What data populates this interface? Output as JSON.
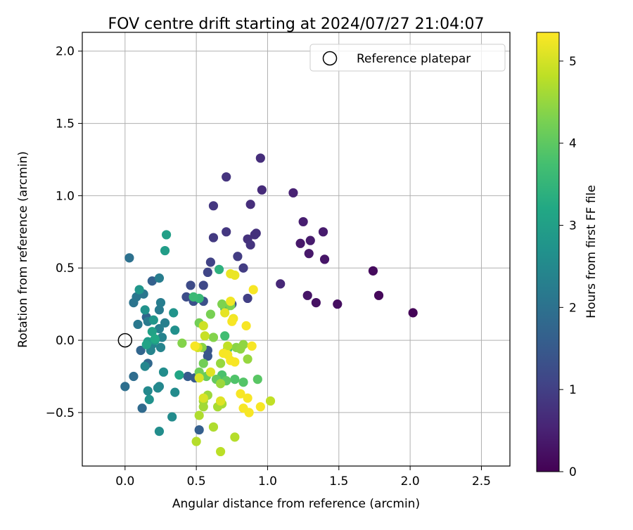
{
  "chart_data": {
    "type": "scatter",
    "title": "FOV centre drift starting at 2024/07/27 21:04:07",
    "xlabel": "Angular distance from reference (arcmin)",
    "ylabel": "Rotation from reference (arcmin)",
    "xlim": [
      -0.3,
      2.7
    ],
    "ylim": [
      -0.87,
      2.13
    ],
    "xticks": [
      0.0,
      0.5,
      1.0,
      1.5,
      2.0,
      2.5
    ],
    "yticks": [
      -0.5,
      0.0,
      0.5,
      1.0,
      1.5,
      2.0
    ],
    "xtick_labels": [
      "0.0",
      "0.5",
      "1.0",
      "1.5",
      "2.0",
      "2.5"
    ],
    "ytick_labels": [
      "−0.5",
      "0.0",
      "0.5",
      "1.0",
      "1.5",
      "2.0"
    ],
    "grid": true,
    "legend": {
      "position": "top-right",
      "label": "Reference platepar"
    },
    "reference_point": {
      "x": 0.0,
      "y": 0.0
    },
    "colorbar": {
      "label": "Hours from first FF file",
      "range": [
        0,
        5.35
      ],
      "ticks": [
        0,
        1,
        2,
        3,
        4,
        5
      ],
      "tick_labels": [
        "0",
        "1",
        "2",
        "3",
        "4",
        "5"
      ],
      "colormap": "viridis"
    },
    "points": [
      {
        "x": 2.02,
        "y": 0.19,
        "c": 0.05
      },
      {
        "x": 1.78,
        "y": 0.31,
        "c": 0.1
      },
      {
        "x": 1.74,
        "y": 0.48,
        "c": 0.15
      },
      {
        "x": 1.49,
        "y": 0.25,
        "c": 0.2
      },
      {
        "x": 1.34,
        "y": 0.26,
        "c": 0.25
      },
      {
        "x": 1.28,
        "y": 0.31,
        "c": 0.3
      },
      {
        "x": 1.4,
        "y": 0.56,
        "c": 0.3
      },
      {
        "x": 1.29,
        "y": 0.6,
        "c": 0.35
      },
      {
        "x": 1.23,
        "y": 0.67,
        "c": 0.35
      },
      {
        "x": 1.3,
        "y": 0.69,
        "c": 0.4
      },
      {
        "x": 1.39,
        "y": 0.75,
        "c": 0.4
      },
      {
        "x": 1.25,
        "y": 0.82,
        "c": 0.45
      },
      {
        "x": 1.18,
        "y": 1.02,
        "c": 0.5
      },
      {
        "x": 1.09,
        "y": 0.39,
        "c": 0.6
      },
      {
        "x": 0.96,
        "y": 1.04,
        "c": 0.65
      },
      {
        "x": 0.95,
        "y": 1.26,
        "c": 0.7
      },
      {
        "x": 0.88,
        "y": 0.94,
        "c": 0.7
      },
      {
        "x": 0.92,
        "y": 0.74,
        "c": 0.75
      },
      {
        "x": 0.91,
        "y": 0.73,
        "c": 0.75
      },
      {
        "x": 0.86,
        "y": 0.7,
        "c": 0.75
      },
      {
        "x": 0.88,
        "y": 0.66,
        "c": 0.8
      },
      {
        "x": 0.71,
        "y": 1.13,
        "c": 0.8
      },
      {
        "x": 0.62,
        "y": 0.93,
        "c": 0.85
      },
      {
        "x": 0.71,
        "y": 0.75,
        "c": 0.85
      },
      {
        "x": 0.62,
        "y": 0.71,
        "c": 0.9
      },
      {
        "x": 0.79,
        "y": 0.58,
        "c": 0.95
      },
      {
        "x": 0.83,
        "y": 0.5,
        "c": 0.95
      },
      {
        "x": 0.86,
        "y": 0.29,
        "c": 1.0
      },
      {
        "x": 0.6,
        "y": 0.54,
        "c": 1.05
      },
      {
        "x": 0.58,
        "y": 0.47,
        "c": 1.1
      },
      {
        "x": 0.55,
        "y": 0.38,
        "c": 1.15
      },
      {
        "x": 0.46,
        "y": 0.38,
        "c": 1.2
      },
      {
        "x": 0.43,
        "y": 0.3,
        "c": 1.25
      },
      {
        "x": 0.48,
        "y": 0.27,
        "c": 1.3
      },
      {
        "x": 0.55,
        "y": 0.27,
        "c": 1.3
      },
      {
        "x": 0.75,
        "y": 0.25,
        "c": 1.35
      },
      {
        "x": 0.58,
        "y": -0.07,
        "c": 1.4
      },
      {
        "x": 0.58,
        "y": -0.11,
        "c": 1.45
      },
      {
        "x": 0.49,
        "y": -0.26,
        "c": 1.5
      },
      {
        "x": 0.44,
        "y": -0.25,
        "c": 1.55
      },
      {
        "x": 0.52,
        "y": -0.62,
        "c": 1.6
      },
      {
        "x": 0.19,
        "y": 0.41,
        "c": 1.65
      },
      {
        "x": 0.15,
        "y": 0.16,
        "c": 1.7
      },
      {
        "x": 0.11,
        "y": -0.07,
        "c": 1.75
      },
      {
        "x": 0.16,
        "y": -0.16,
        "c": 1.8
      },
      {
        "x": 0.12,
        "y": -0.47,
        "c": 1.85
      },
      {
        "x": 0.06,
        "y": -0.25,
        "c": 1.9
      },
      {
        "x": 0.0,
        "y": -0.32,
        "c": 1.95
      },
      {
        "x": 0.03,
        "y": 0.57,
        "c": 2.0
      },
      {
        "x": 0.06,
        "y": 0.26,
        "c": 2.05
      },
      {
        "x": 0.08,
        "y": 0.3,
        "c": 2.1
      },
      {
        "x": 0.13,
        "y": 0.32,
        "c": 2.1
      },
      {
        "x": 0.09,
        "y": 0.11,
        "c": 2.15
      },
      {
        "x": 0.16,
        "y": 0.13,
        "c": 2.2
      },
      {
        "x": 0.24,
        "y": 0.21,
        "c": 2.2
      },
      {
        "x": 0.25,
        "y": 0.26,
        "c": 2.25
      },
      {
        "x": 0.24,
        "y": 0.43,
        "c": 2.25
      },
      {
        "x": 0.28,
        "y": 0.12,
        "c": 2.3
      },
      {
        "x": 0.24,
        "y": 0.08,
        "c": 2.3
      },
      {
        "x": 0.26,
        "y": 0.02,
        "c": 2.35
      },
      {
        "x": 0.19,
        "y": -0.03,
        "c": 2.35
      },
      {
        "x": 0.25,
        "y": -0.05,
        "c": 2.4
      },
      {
        "x": 0.18,
        "y": -0.07,
        "c": 2.4
      },
      {
        "x": 0.14,
        "y": -0.18,
        "c": 2.45
      },
      {
        "x": 0.24,
        "y": -0.32,
        "c": 2.45
      },
      {
        "x": 0.23,
        "y": -0.33,
        "c": 2.5
      },
      {
        "x": 0.16,
        "y": -0.35,
        "c": 2.5
      },
      {
        "x": 0.35,
        "y": -0.36,
        "c": 2.55
      },
      {
        "x": 0.33,
        "y": -0.53,
        "c": 2.55
      },
      {
        "x": 0.24,
        "y": -0.63,
        "c": 2.6
      },
      {
        "x": 0.27,
        "y": -0.22,
        "c": 2.6
      },
      {
        "x": 0.35,
        "y": 0.07,
        "c": 2.65
      },
      {
        "x": 0.14,
        "y": 0.21,
        "c": 2.7
      },
      {
        "x": 0.17,
        "y": -0.41,
        "c": 2.7
      },
      {
        "x": 0.34,
        "y": 0.19,
        "c": 2.75
      },
      {
        "x": 0.2,
        "y": 0.14,
        "c": 2.8
      },
      {
        "x": 0.1,
        "y": 0.35,
        "c": 2.8
      },
      {
        "x": 0.21,
        "y": 0.0,
        "c": 2.85
      },
      {
        "x": 0.16,
        "y": -0.01,
        "c": 2.9
      },
      {
        "x": 0.28,
        "y": 0.62,
        "c": 2.95
      },
      {
        "x": 0.29,
        "y": 0.73,
        "c": 3.0
      },
      {
        "x": 0.19,
        "y": 0.06,
        "c": 3.05
      },
      {
        "x": 0.15,
        "y": -0.03,
        "c": 3.1
      },
      {
        "x": 0.38,
        "y": -0.24,
        "c": 3.15
      },
      {
        "x": 0.21,
        "y": 0.01,
        "c": 3.2
      },
      {
        "x": 0.66,
        "y": 0.49,
        "c": 3.4
      },
      {
        "x": 0.52,
        "y": 0.29,
        "c": 3.55
      },
      {
        "x": 0.48,
        "y": 0.3,
        "c": 3.6
      },
      {
        "x": 0.7,
        "y": 0.22,
        "c": 3.65
      },
      {
        "x": 0.7,
        "y": 0.03,
        "c": 3.7
      },
      {
        "x": 0.72,
        "y": -0.06,
        "c": 3.75
      },
      {
        "x": 0.68,
        "y": -0.24,
        "c": 3.8
      },
      {
        "x": 0.77,
        "y": -0.27,
        "c": 3.85
      },
      {
        "x": 0.83,
        "y": -0.29,
        "c": 3.9
      },
      {
        "x": 0.93,
        "y": -0.27,
        "c": 3.95
      },
      {
        "x": 0.71,
        "y": -0.28,
        "c": 4.0
      },
      {
        "x": 0.64,
        "y": -0.27,
        "c": 4.05
      },
      {
        "x": 0.57,
        "y": -0.25,
        "c": 4.1
      },
      {
        "x": 0.52,
        "y": -0.22,
        "c": 4.15
      },
      {
        "x": 0.55,
        "y": -0.16,
        "c": 4.2
      },
      {
        "x": 0.52,
        "y": 0.12,
        "c": 4.2
      },
      {
        "x": 0.6,
        "y": 0.18,
        "c": 4.25
      },
      {
        "x": 0.68,
        "y": 0.25,
        "c": 4.3
      },
      {
        "x": 0.74,
        "y": 0.24,
        "c": 4.3
      },
      {
        "x": 0.62,
        "y": 0.02,
        "c": 4.35
      },
      {
        "x": 0.4,
        "y": -0.02,
        "c": 4.35
      },
      {
        "x": 0.54,
        "y": -0.05,
        "c": 4.4
      },
      {
        "x": 0.78,
        "y": -0.05,
        "c": 4.4
      },
      {
        "x": 0.83,
        "y": -0.03,
        "c": 4.45
      },
      {
        "x": 0.81,
        "y": -0.06,
        "c": 4.45
      },
      {
        "x": 0.86,
        "y": -0.13,
        "c": 4.5
      },
      {
        "x": 0.67,
        "y": -0.16,
        "c": 4.5
      },
      {
        "x": 0.67,
        "y": -0.3,
        "c": 4.55
      },
      {
        "x": 0.58,
        "y": -0.38,
        "c": 4.55
      },
      {
        "x": 0.55,
        "y": -0.42,
        "c": 4.6
      },
      {
        "x": 0.55,
        "y": -0.46,
        "c": 4.6
      },
      {
        "x": 0.65,
        "y": -0.46,
        "c": 4.65
      },
      {
        "x": 0.68,
        "y": -0.44,
        "c": 4.65
      },
      {
        "x": 0.52,
        "y": -0.52,
        "c": 4.7
      },
      {
        "x": 0.62,
        "y": -0.6,
        "c": 4.7
      },
      {
        "x": 0.77,
        "y": -0.67,
        "c": 4.75
      },
      {
        "x": 0.5,
        "y": -0.7,
        "c": 4.75
      },
      {
        "x": 0.67,
        "y": -0.77,
        "c": 4.8
      },
      {
        "x": 1.02,
        "y": -0.42,
        "c": 4.85
      },
      {
        "x": 0.72,
        "y": -0.04,
        "c": 4.85
      },
      {
        "x": 0.56,
        "y": 0.03,
        "c": 4.9
      },
      {
        "x": 0.55,
        "y": 0.1,
        "c": 4.95
      },
      {
        "x": 0.51,
        "y": -0.05,
        "c": 5.0
      },
      {
        "x": 0.52,
        "y": -0.26,
        "c": 5.05
      },
      {
        "x": 0.55,
        "y": -0.4,
        "c": 5.05
      },
      {
        "x": 0.6,
        "y": -0.22,
        "c": 5.1
      },
      {
        "x": 0.67,
        "y": -0.42,
        "c": 5.1
      },
      {
        "x": 0.7,
        "y": 0.19,
        "c": 5.15
      },
      {
        "x": 0.74,
        "y": 0.46,
        "c": 5.2
      },
      {
        "x": 0.77,
        "y": 0.45,
        "c": 5.2
      },
      {
        "x": 0.76,
        "y": 0.15,
        "c": 5.25
      },
      {
        "x": 0.74,
        "y": 0.27,
        "c": 5.25
      },
      {
        "x": 0.9,
        "y": 0.35,
        "c": 5.3
      },
      {
        "x": 0.85,
        "y": 0.1,
        "c": 5.3
      },
      {
        "x": 0.89,
        "y": -0.04,
        "c": 5.3
      },
      {
        "x": 0.75,
        "y": 0.13,
        "c": 5.3
      },
      {
        "x": 0.69,
        "y": -0.09,
        "c": 5.3
      },
      {
        "x": 0.72,
        "y": -0.1,
        "c": 5.3
      },
      {
        "x": 0.74,
        "y": -0.14,
        "c": 5.3
      },
      {
        "x": 0.77,
        "y": -0.15,
        "c": 5.3
      },
      {
        "x": 0.81,
        "y": -0.37,
        "c": 5.3
      },
      {
        "x": 0.86,
        "y": -0.4,
        "c": 5.3
      },
      {
        "x": 0.83,
        "y": -0.47,
        "c": 5.3
      },
      {
        "x": 0.87,
        "y": -0.5,
        "c": 5.3
      },
      {
        "x": 0.95,
        "y": -0.46,
        "c": 5.3
      },
      {
        "x": 0.49,
        "y": -0.04,
        "c": 5.3
      }
    ]
  }
}
